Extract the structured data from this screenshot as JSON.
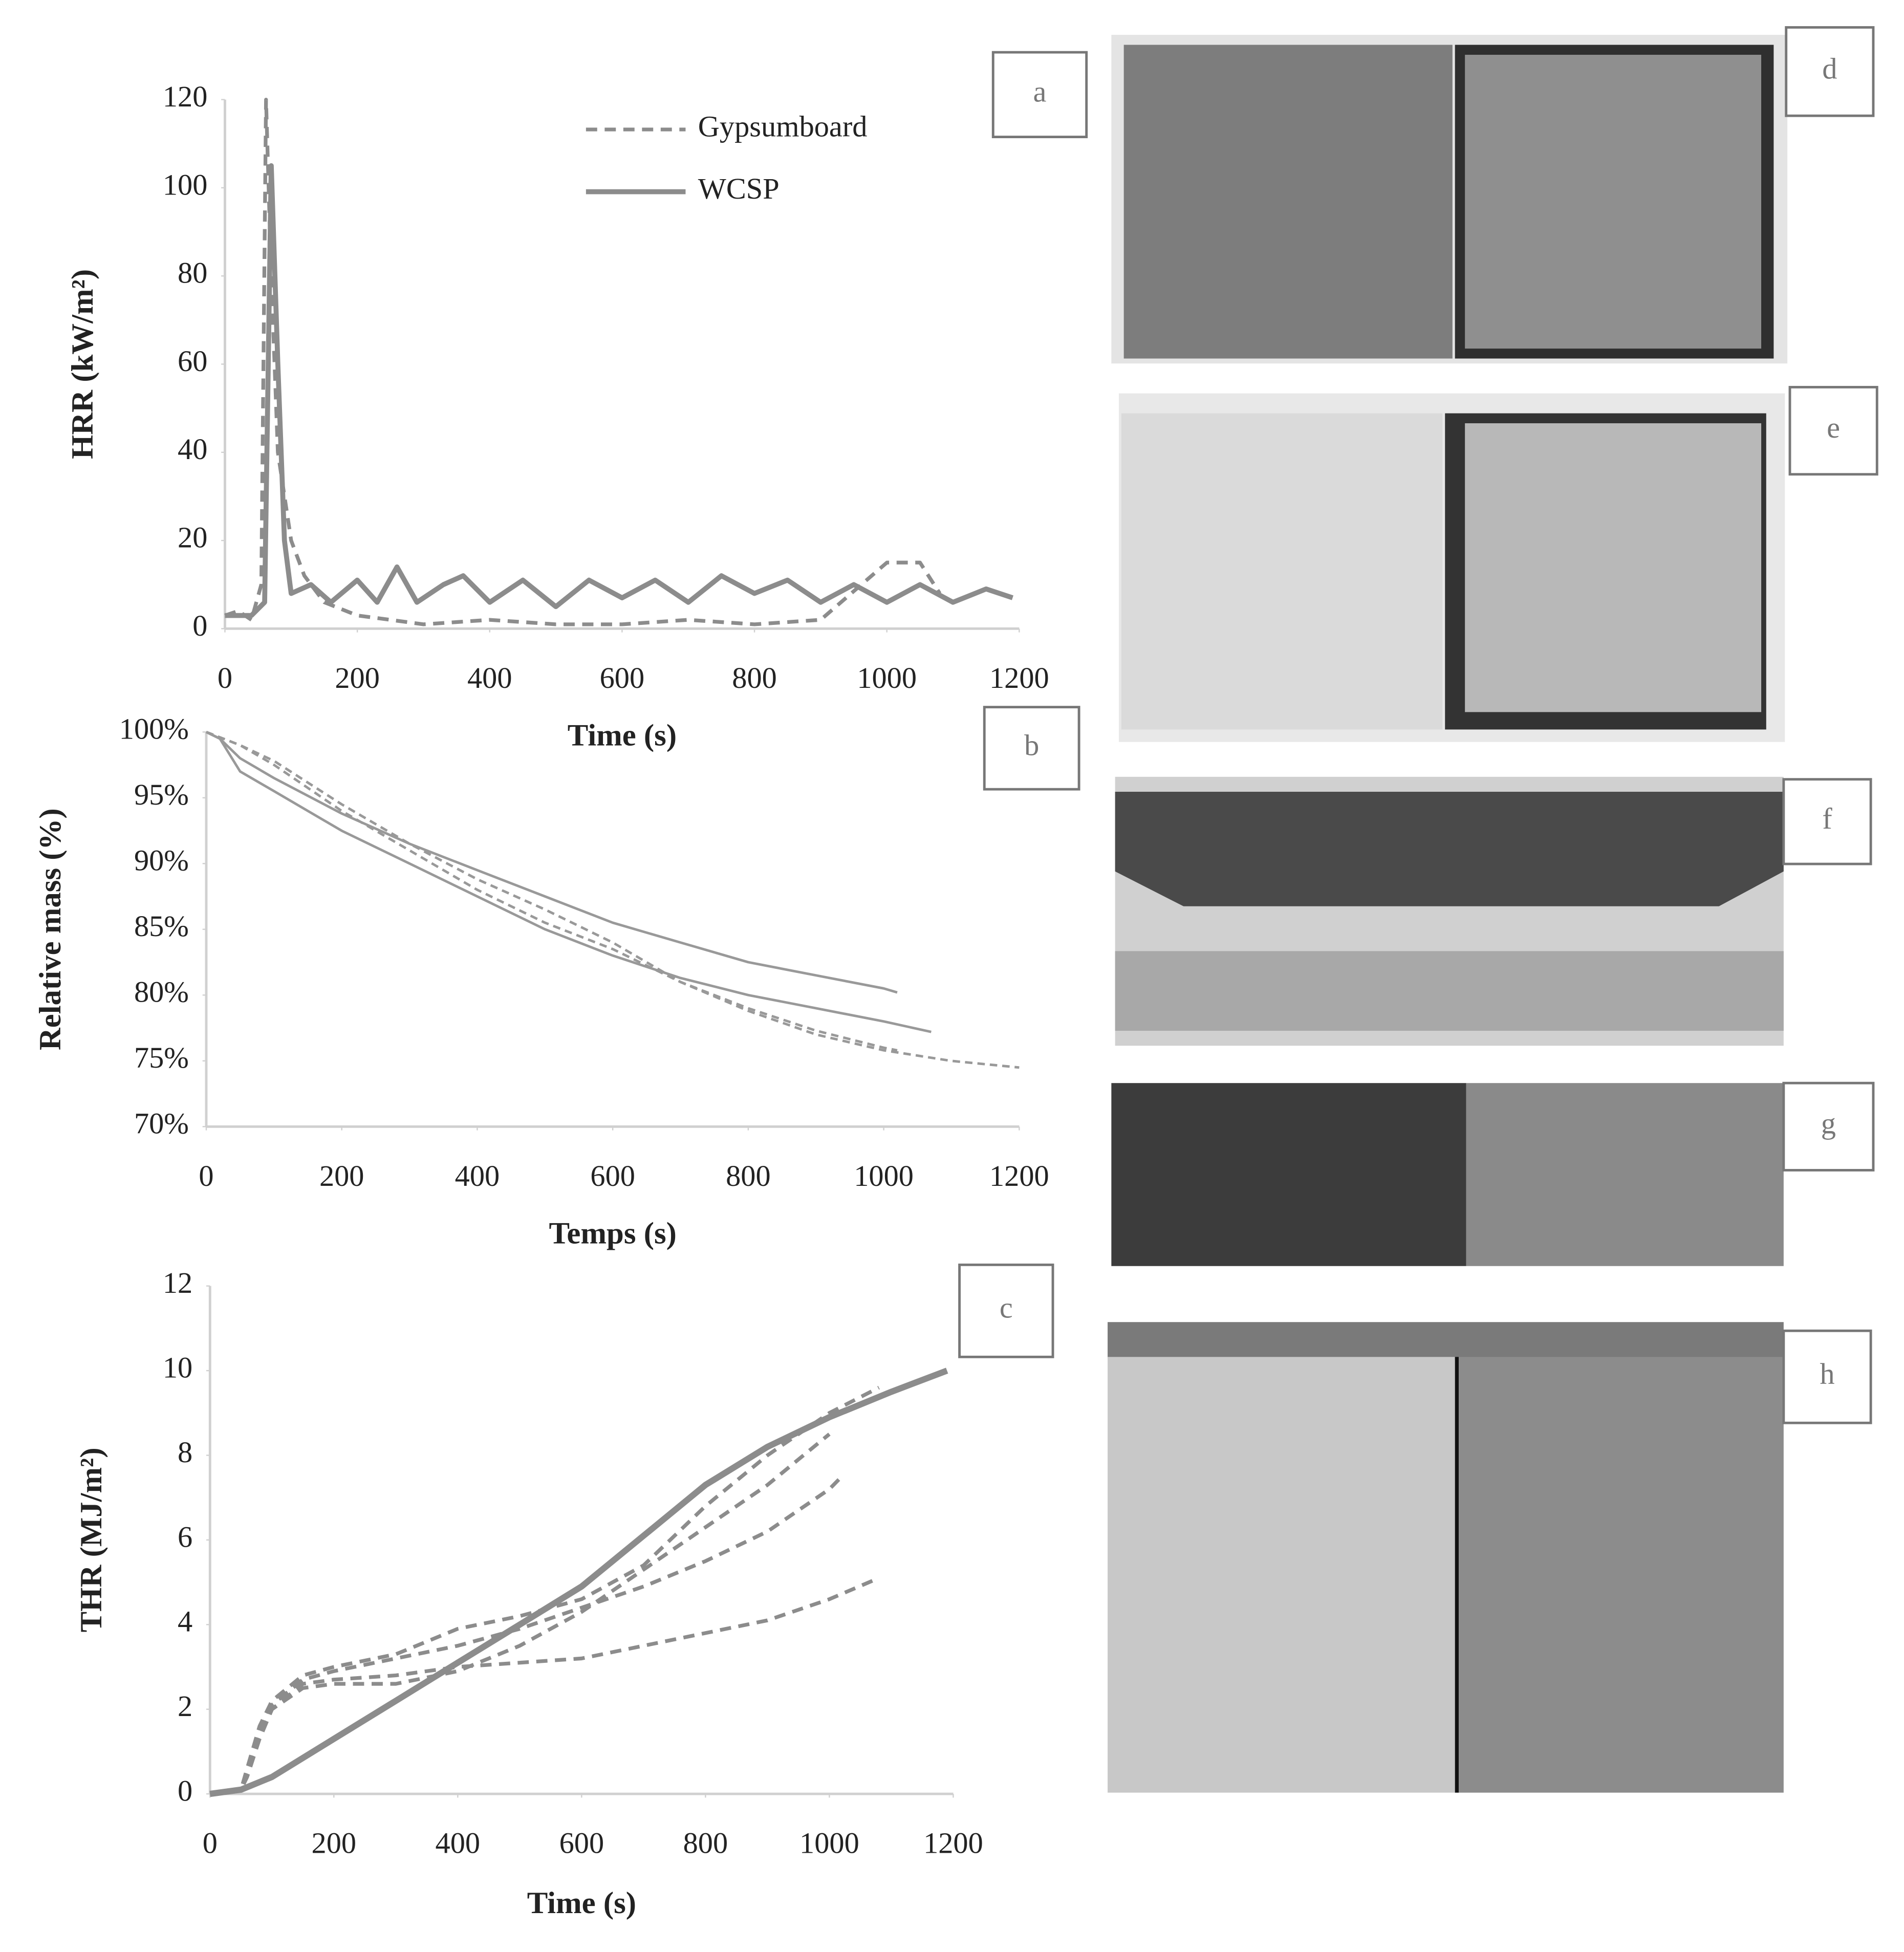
{
  "chart_data": [
    {
      "type": "line",
      "panel_label": "a",
      "x_label": "Time (s)",
      "y_label": "HRR (kW/m²)",
      "xlim": [
        0,
        1200
      ],
      "xticks": [
        0,
        200,
        400,
        600,
        800,
        1000,
        1200
      ],
      "ylim": [
        0,
        120
      ],
      "yticks": [
        0,
        20,
        40,
        60,
        80,
        100,
        120
      ],
      "series": [
        {
          "name": "Gypsumboard",
          "color": "#8c8c8c",
          "dashed": true,
          "width": 3,
          "x": [
            0,
            20,
            40,
            55,
            62,
            70,
            80,
            100,
            120,
            150,
            200,
            250,
            300,
            400,
            500,
            600,
            700,
            800,
            900,
            1000,
            1050,
            1080
          ],
          "values": [
            3,
            4,
            2,
            10,
            120,
            80,
            40,
            20,
            12,
            6,
            3,
            2,
            1,
            2,
            1,
            1,
            2,
            1,
            2,
            15,
            15,
            8
          ]
        },
        {
          "name": "WCSP",
          "color": "#8c8c8c",
          "dashed": false,
          "width": 4,
          "x": [
            0,
            40,
            60,
            70,
            80,
            90,
            100,
            130,
            160,
            200,
            230,
            260,
            290,
            330,
            360,
            400,
            450,
            500,
            550,
            600,
            650,
            700,
            750,
            800,
            850,
            900,
            950,
            1000,
            1050,
            1100,
            1150,
            1190
          ],
          "values": [
            3,
            3,
            6,
            105,
            60,
            20,
            8,
            10,
            6,
            11,
            6,
            14,
            6,
            10,
            12,
            6,
            11,
            5,
            11,
            7,
            11,
            6,
            12,
            8,
            11,
            6,
            10,
            6,
            10,
            6,
            9,
            7
          ]
        }
      ]
    },
    {
      "type": "line",
      "panel_label": "b",
      "x_label": "Temps (s)",
      "y_label": "Relative mass (%)",
      "xlim": [
        0,
        1200
      ],
      "xticks": [
        0,
        200,
        400,
        600,
        800,
        1000,
        1200
      ],
      "ylim": [
        70,
        100
      ],
      "yticks": [
        {
          "value": 70,
          "label": "70%"
        },
        {
          "value": 75,
          "label": "75%"
        },
        {
          "value": 80,
          "label": "80%"
        },
        {
          "value": 85,
          "label": "85%"
        },
        {
          "value": 90,
          "label": "90%"
        },
        {
          "value": 95,
          "label": "95%"
        },
        {
          "value": 100,
          "label": "100%"
        }
      ],
      "series": [
        {
          "color": "#999999",
          "dashed": true,
          "width": 2,
          "x": [
            0,
            50,
            100,
            200,
            300,
            400,
            500,
            600,
            700,
            800,
            900,
            1000,
            1100,
            1200
          ],
          "values": [
            100,
            99,
            97.8,
            94.5,
            91.5,
            88.8,
            86.5,
            84,
            81,
            78.8,
            77,
            75.8,
            75,
            74.5
          ]
        },
        {
          "color": "#999999",
          "dashed": true,
          "width": 2,
          "x": [
            0,
            50,
            100,
            200,
            300,
            400,
            500,
            600,
            700,
            800,
            900,
            1000,
            1020
          ],
          "values": [
            100,
            99,
            97.5,
            94,
            91,
            88,
            85.5,
            83.5,
            81,
            79,
            77.3,
            76,
            75.8
          ]
        },
        {
          "color": "#999999",
          "dashed": false,
          "width": 2,
          "x": [
            0,
            20,
            50,
            100,
            200,
            300,
            400,
            500,
            600,
            700,
            800,
            900,
            1000,
            1020
          ],
          "values": [
            100,
            99.5,
            98,
            96.5,
            93.8,
            91.5,
            89.5,
            87.5,
            85.5,
            84,
            82.5,
            81.5,
            80.5,
            80.2
          ]
        },
        {
          "color": "#999999",
          "dashed": false,
          "width": 2,
          "x": [
            0,
            20,
            50,
            100,
            200,
            300,
            400,
            500,
            600,
            700,
            800,
            900,
            1000,
            1070
          ],
          "values": [
            100,
            99.5,
            97,
            95.5,
            92.5,
            90,
            87.5,
            85,
            83,
            81.3,
            80,
            79,
            78,
            77.2
          ]
        }
      ]
    },
    {
      "type": "line",
      "panel_label": "c",
      "x_label": "Time (s)",
      "y_label": "THR (MJ/m²)",
      "xlim": [
        0,
        1200
      ],
      "xticks": [
        0,
        200,
        400,
        600,
        800,
        1000,
        1200
      ],
      "ylim": [
        0,
        12
      ],
      "yticks": [
        0,
        2,
        4,
        6,
        8,
        10,
        12
      ],
      "series": [
        {
          "color": "#8c8c8c",
          "dashed": false,
          "width": 5,
          "x": [
            0,
            50,
            100,
            200,
            300,
            400,
            500,
            600,
            700,
            800,
            900,
            1000,
            1100,
            1190
          ],
          "values": [
            0,
            0.1,
            0.4,
            1.3,
            2.2,
            3.1,
            4,
            4.9,
            6.1,
            7.3,
            8.2,
            8.9,
            9.5,
            10
          ]
        },
        {
          "color": "#8c8c8c",
          "dashed": true,
          "width": 3,
          "x": [
            0,
            50,
            60,
            80,
            100,
            150,
            200,
            300,
            400,
            500,
            600,
            700,
            800,
            900,
            1000,
            1080
          ],
          "values": [
            0,
            0.1,
            0.6,
            1.6,
            2.2,
            2.8,
            3.0,
            3.3,
            3.9,
            4.2,
            4.6,
            5.4,
            6.8,
            8.0,
            9.0,
            9.6
          ]
        },
        {
          "color": "#8c8c8c",
          "dashed": true,
          "width": 3,
          "x": [
            0,
            50,
            60,
            80,
            100,
            150,
            200,
            300,
            400,
            500,
            600,
            700,
            800,
            900,
            1000,
            1020
          ],
          "values": [
            0,
            0.1,
            0.5,
            1.5,
            2.1,
            2.7,
            2.9,
            3.2,
            3.5,
            3.9,
            4.4,
            4.9,
            5.5,
            6.2,
            7.2,
            7.5
          ]
        },
        {
          "color": "#8c8c8c",
          "dashed": true,
          "width": 3,
          "x": [
            0,
            50,
            60,
            80,
            100,
            150,
            200,
            300,
            400,
            500,
            600,
            700,
            800,
            900,
            1000,
            1080
          ],
          "values": [
            0,
            0.1,
            0.4,
            1.3,
            2.0,
            2.6,
            2.7,
            2.8,
            3.0,
            3.1,
            3.2,
            3.5,
            3.8,
            4.1,
            4.6,
            5.1
          ]
        },
        {
          "color": "#8c8c8c",
          "dashed": true,
          "width": 3,
          "x": [
            0,
            50,
            60,
            80,
            100,
            150,
            200,
            300,
            400,
            500,
            600,
            700,
            800,
            900,
            950,
            1000
          ],
          "values": [
            0,
            0.1,
            0.5,
            1.4,
            2.0,
            2.5,
            2.6,
            2.6,
            2.9,
            3.5,
            4.3,
            5.3,
            6.3,
            7.3,
            7.9,
            8.5
          ]
        }
      ]
    }
  ],
  "panels": [
    {
      "label": "d"
    },
    {
      "label": "e"
    },
    {
      "label": "f"
    },
    {
      "label": "g"
    },
    {
      "label": "h"
    }
  ]
}
